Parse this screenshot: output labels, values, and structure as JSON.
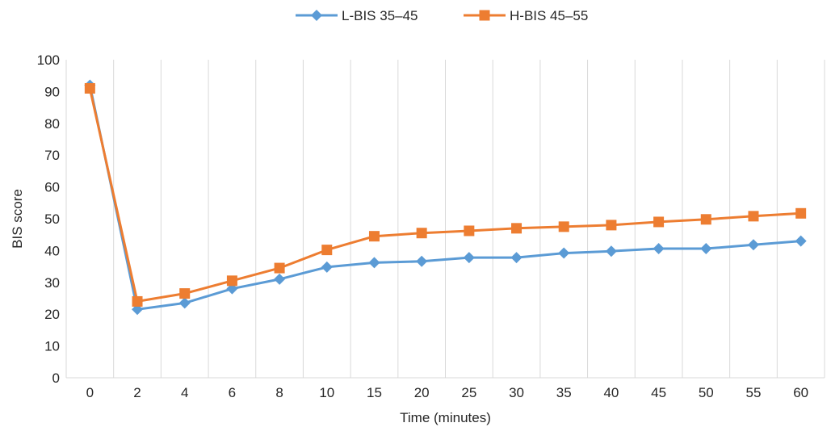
{
  "chart_data": {
    "type": "line",
    "categories": [
      "0",
      "2",
      "4",
      "6",
      "8",
      "10",
      "15",
      "20",
      "25",
      "30",
      "35",
      "40",
      "45",
      "50",
      "55",
      "60"
    ],
    "series": [
      {
        "name": "L-BIS 35–45",
        "color": "#5B9BD5",
        "marker": "diamond",
        "values": [
          92,
          21.5,
          23.5,
          28,
          31,
          34.8,
          36.2,
          36.6,
          37.8,
          37.8,
          39.2,
          39.8,
          40.6,
          40.6,
          41.8,
          43
        ]
      },
      {
        "name": "H-BIS 45–55",
        "color": "#ED7D31",
        "marker": "square",
        "values": [
          91,
          24,
          26.5,
          30.5,
          34.5,
          40.2,
          44.5,
          45.5,
          46.2,
          47,
          47.5,
          48,
          49,
          49.8,
          50.8,
          51.7
        ]
      }
    ],
    "xlabel": "Time (minutes)",
    "ylabel": "BIS score",
    "ylim": [
      0,
      100
    ],
    "yticks": [
      "0",
      "10",
      "20",
      "30",
      "40",
      "50",
      "60",
      "70",
      "80",
      "90",
      "100"
    ],
    "grid": "vertical",
    "legend": "top-center"
  }
}
